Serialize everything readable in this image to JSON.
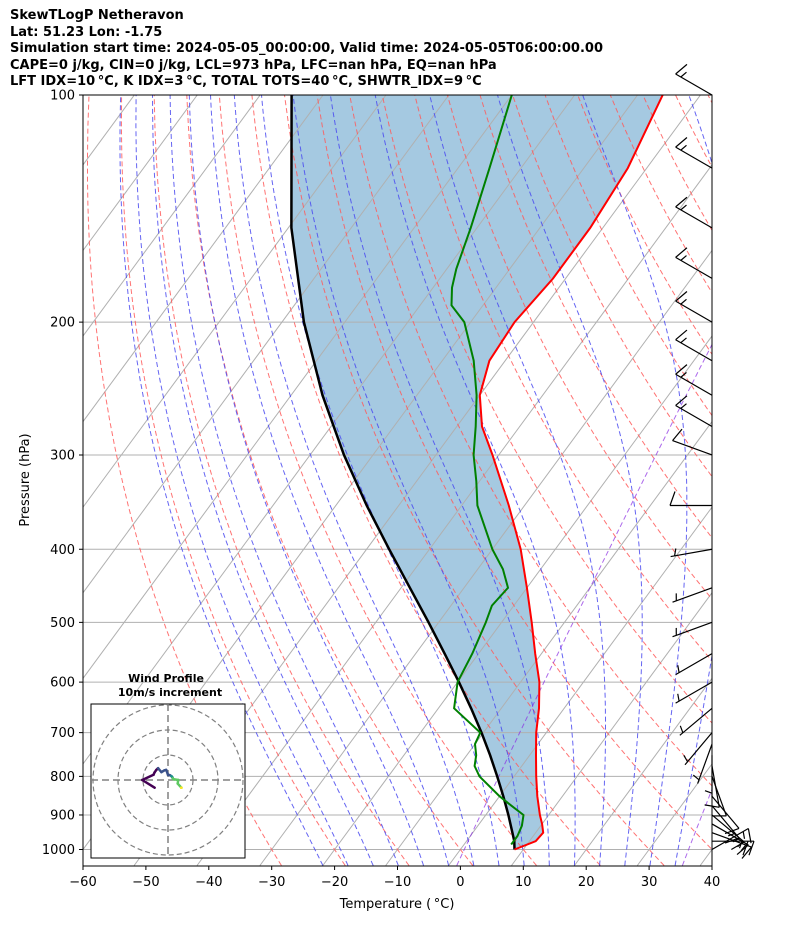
{
  "header": {
    "line1": "SkewTLogP Netheravon",
    "line2": "Lat: 51.23   Lon: -1.75",
    "line3": "Simulation start time: 2024-05-05_00:00:00, Valid time: 2024-05-05T06:00:00.00",
    "line4": "CAPE=0 j/kg, CIN=0 j/kg, LCL=973 hPa, LFC=nan hPa, EQ=nan hPa",
    "line5": "LFT IDX=10 °C, K IDX=3 °C, TOTAL TOTS=40 °C, SHWTR_IDX=9 °C"
  },
  "chart_data": {
    "type": "line",
    "xlabel": "Temperature ( °C)",
    "ylabel": "Pressure (hPa)",
    "xlim": [
      -60,
      40
    ],
    "ylim": [
      1050,
      100
    ],
    "y_scale": "log",
    "skewed": true,
    "grid": true,
    "x_ticks": [
      "−60",
      "−50",
      "−40",
      "−30",
      "−20",
      "−10",
      "0",
      "10",
      "20",
      "30",
      "40"
    ],
    "x_tick_values": [
      -60,
      -50,
      -40,
      -30,
      -20,
      -10,
      0,
      10,
      20,
      30,
      40
    ],
    "y_ticks": [
      "100",
      "200",
      "300",
      "400",
      "500",
      "600",
      "700",
      "800",
      "900",
      "1000"
    ],
    "y_tick_values": [
      100,
      200,
      300,
      400,
      500,
      600,
      700,
      800,
      900,
      1000
    ],
    "series": [
      {
        "role": "temperature",
        "color": "#ff0000",
        "pressure": [
          1000,
          975,
          950,
          925,
          900,
          850,
          800,
          750,
          700,
          650,
          600,
          550,
          500,
          450,
          400,
          350,
          300,
          275,
          250,
          225,
          200,
          175,
          150,
          125,
          100
        ],
        "temp": [
          8.6,
          11.0,
          11.2,
          10.0,
          8.6,
          6.0,
          3.5,
          1.0,
          -1.6,
          -4.0,
          -7.0,
          -11.0,
          -15.2,
          -20.0,
          -25.5,
          -32.5,
          -41.0,
          -46.0,
          -50.0,
          -52.5,
          -53.0,
          -52.0,
          -52.0,
          -53.0,
          -56.0
        ]
      },
      {
        "role": "dewpoint",
        "color": "#008000",
        "pressure": [
          985,
          960,
          930,
          900,
          875,
          850,
          800,
          775,
          750,
          725,
          700,
          650,
          600,
          550,
          500,
          475,
          450,
          425,
          400,
          350,
          325,
          300,
          275,
          250,
          225,
          200,
          190,
          180,
          170,
          150,
          125,
          100
        ],
        "dew": [
          7.5,
          7.5,
          7.0,
          6.0,
          3.0,
          0.0,
          -5.5,
          -7.5,
          -8.5,
          -10.0,
          -10.5,
          -17.5,
          -20.0,
          -21.0,
          -22.5,
          -23.5,
          -23.0,
          -26.0,
          -30.0,
          -37.5,
          -40.5,
          -44.0,
          -47.0,
          -50.5,
          -55.0,
          -61.0,
          -65.0,
          -67.0,
          -68.5,
          -71.0,
          -75.0,
          -80.0
        ]
      },
      {
        "role": "parcel",
        "color": "#000000",
        "pressure": [
          1000,
          975,
          950,
          900,
          850,
          800,
          750,
          700,
          650,
          600,
          550,
          500,
          450,
          400,
          350,
          300,
          250,
          200,
          150,
          100
        ],
        "temp": [
          8.6,
          7.6,
          6.3,
          3.6,
          0.6,
          -2.7,
          -6.3,
          -10.3,
          -14.8,
          -19.8,
          -25.4,
          -31.6,
          -38.6,
          -46.4,
          -55.1,
          -64.6,
          -75.0,
          -86.5,
          -99.5,
          -115.0
        ]
      }
    ],
    "wind_barbs": {
      "pressure": [
        100,
        125,
        150,
        175,
        200,
        225,
        250,
        275,
        300,
        350,
        400,
        450,
        500,
        550,
        600,
        650,
        700,
        725,
        750,
        775,
        800,
        850,
        875,
        900,
        925,
        950,
        975,
        1000
      ],
      "speed_kt": [
        15,
        15,
        15,
        15,
        15,
        15,
        15,
        15,
        10,
        10,
        5,
        5,
        5,
        5,
        5,
        5,
        5,
        5,
        5,
        10,
        10,
        10,
        15,
        15,
        15,
        15,
        25,
        15
      ],
      "direction_deg": [
        300,
        300,
        300,
        300,
        300,
        300,
        300,
        300,
        290,
        270,
        260,
        250,
        250,
        240,
        240,
        230,
        220,
        200,
        180,
        170,
        160,
        140,
        140,
        130,
        120,
        110,
        90,
        60
      ]
    },
    "inset": {
      "title_line1": "Wind Profile",
      "title_line2": "10m/s increment",
      "colormap": [
        "#440154",
        "#3b528b",
        "#21918c",
        "#5ec962",
        "#fde725"
      ]
    }
  }
}
